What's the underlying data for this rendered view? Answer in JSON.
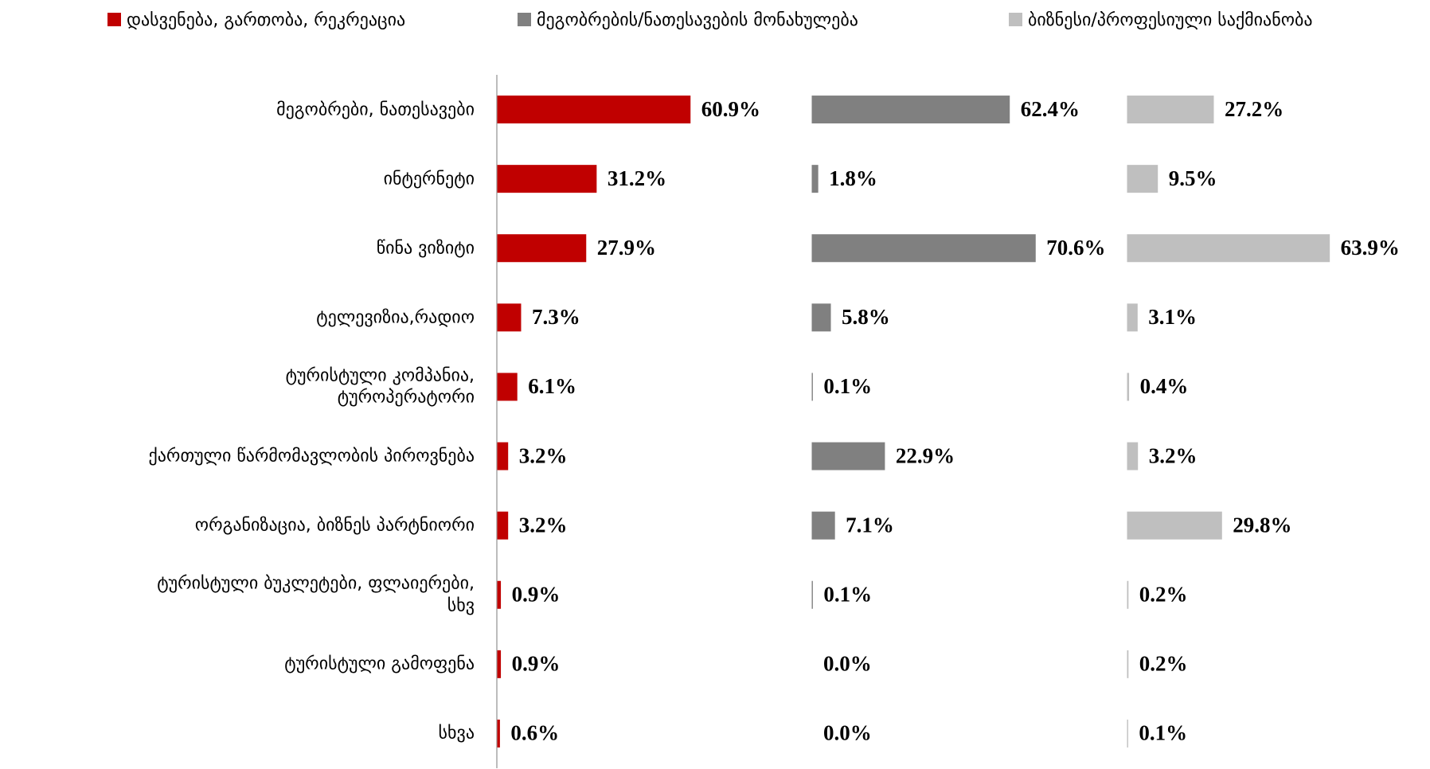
{
  "chart_data": {
    "type": "bar",
    "categories": [
      "მეგობრები, ნათესავები",
      "ინტერნეტი",
      "წინა ვიზიტი",
      "ტელევიზია,რადიო",
      "ტურისტული კომპანია,\nტუროპერატორი",
      "ქართული წარმომავლობის პიროვნება",
      "ორგანიზაცია, ბიზნეს პარტნიორი",
      "ტურისტული ბუკლეტები, ფლაიერები,\nსხვ",
      "ტურისტული გამოფენა",
      "სხვა"
    ],
    "series": [
      {
        "name": "დასვენება, გართობა, რეკრეაცია",
        "color": "#c00000",
        "values": [
          60.9,
          31.2,
          27.9,
          7.3,
          6.1,
          3.2,
          3.2,
          0.9,
          0.9,
          0.6
        ],
        "value_labels": [
          "60.9%",
          "31.2%",
          "27.9%",
          "7.3%",
          "6.1%",
          "3.2%",
          "3.2%",
          "0.9%",
          "0.9%",
          "0.6%"
        ]
      },
      {
        "name": "მეგობრების/ნათესავების მონახულება",
        "color": "#808080",
        "values": [
          62.4,
          1.8,
          70.6,
          5.8,
          0.1,
          22.9,
          7.1,
          0.1,
          0.0,
          0.0
        ],
        "value_labels": [
          "62.4%",
          "1.8%",
          "70.6%",
          "5.8%",
          "0.1%",
          "22.9%",
          "7.1%",
          "0.1%",
          "0.0%",
          "0.0%"
        ]
      },
      {
        "name": "ბიზნესი/პროფესიული საქმიანობა",
        "color": "#bfbfbf",
        "values": [
          27.2,
          9.5,
          63.9,
          3.1,
          0.4,
          3.2,
          29.8,
          0.2,
          0.2,
          0.1
        ],
        "value_labels": [
          "27.2%",
          "9.5%",
          "63.9%",
          "3.1%",
          "0.4%",
          "3.2%",
          "29.8%",
          "0.2%",
          "0.2%",
          "0.1%"
        ]
      }
    ],
    "legend": "top"
  }
}
